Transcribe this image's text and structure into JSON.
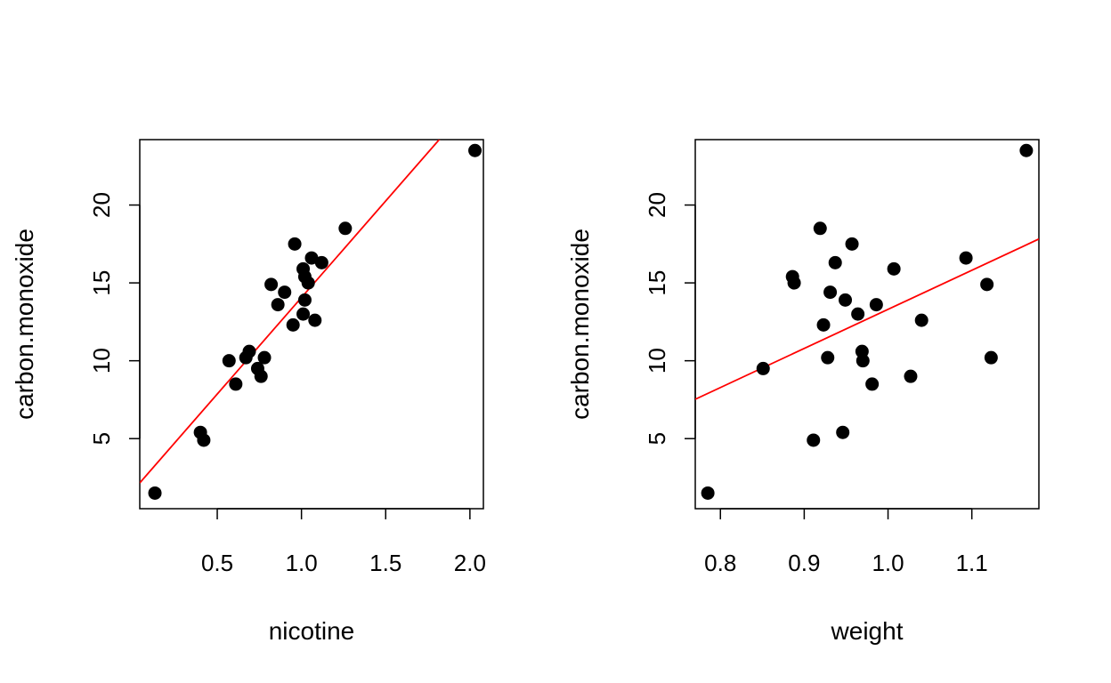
{
  "chart_data": [
    {
      "type": "scatter",
      "title": "",
      "xlabel": "nicotine",
      "ylabel": "carbon.monoxide",
      "xlim": [
        0.04,
        2.08
      ],
      "ylim": [
        0.5,
        24.2
      ],
      "xticks": [
        0.5,
        1.0,
        1.5,
        2.0
      ],
      "xtick_labels": [
        "0.5",
        "1.0",
        "1.5",
        "2.0"
      ],
      "yticks": [
        5,
        10,
        15,
        20
      ],
      "ytick_labels": [
        "5",
        "10",
        "15",
        "20"
      ],
      "point_color": "#000000",
      "line_color": "#ff0000",
      "fit_line": {
        "intercept": 1.66,
        "slope": 12.4
      },
      "x": [
        0.13,
        0.4,
        0.42,
        0.57,
        0.61,
        0.67,
        0.69,
        0.74,
        0.76,
        0.78,
        0.82,
        0.86,
        0.9,
        0.95,
        0.96,
        1.01,
        1.01,
        1.02,
        1.02,
        1.04,
        1.06,
        1.08,
        1.12,
        1.26,
        2.03
      ],
      "y": [
        1.5,
        5.4,
        4.9,
        10.0,
        8.5,
        10.2,
        10.6,
        9.5,
        9.0,
        10.2,
        14.9,
        13.6,
        14.4,
        12.3,
        17.5,
        13.0,
        15.9,
        13.9,
        15.4,
        15.0,
        16.6,
        12.6,
        16.3,
        18.5,
        23.5
      ]
    },
    {
      "type": "scatter",
      "title": "",
      "xlabel": "weight",
      "ylabel": "carbon.monoxide",
      "xlim": [
        0.77,
        1.18
      ],
      "ylim": [
        0.5,
        24.2
      ],
      "xticks": [
        0.8,
        0.9,
        1.0,
        1.1
      ],
      "xtick_labels": [
        "0.8",
        "0.9",
        "1.0",
        "1.1"
      ],
      "yticks": [
        5,
        10,
        15,
        20
      ],
      "ytick_labels": [
        "5",
        "10",
        "15",
        "20"
      ],
      "point_color": "#000000",
      "line_color": "#ff0000",
      "fit_line": {
        "intercept": -11.8,
        "slope": 25.1
      },
      "x": [
        0.785,
        0.851,
        0.886,
        0.888,
        0.911,
        0.919,
        0.923,
        0.928,
        0.931,
        0.937,
        0.946,
        0.949,
        0.957,
        0.964,
        0.969,
        0.97,
        0.981,
        0.986,
        1.007,
        1.027,
        1.04,
        1.093,
        1.118,
        1.123,
        1.165
      ],
      "y": [
        1.5,
        9.5,
        15.4,
        15.0,
        4.9,
        18.5,
        12.3,
        10.2,
        14.4,
        16.3,
        5.4,
        13.9,
        17.5,
        13.0,
        10.6,
        10.0,
        8.5,
        13.6,
        15.9,
        9.0,
        12.6,
        16.6,
        14.9,
        10.2,
        23.5
      ]
    }
  ]
}
